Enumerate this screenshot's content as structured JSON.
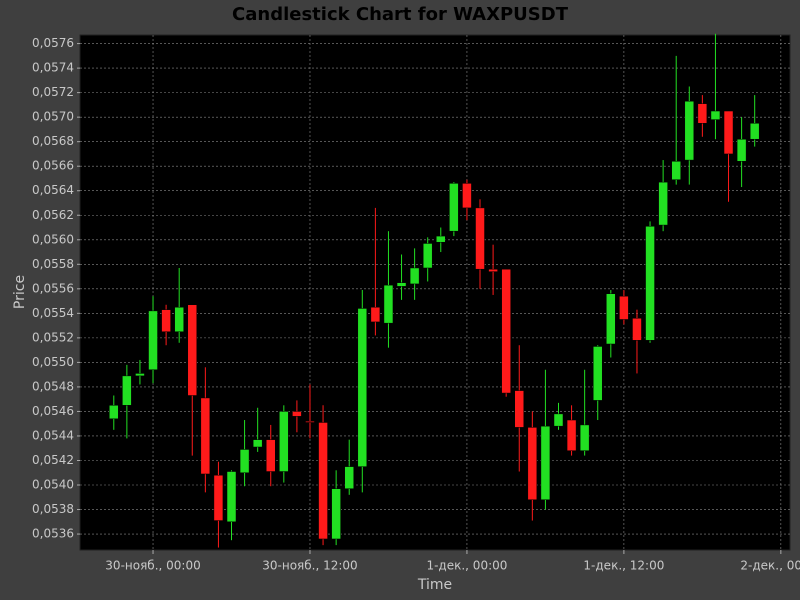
{
  "chart_data": {
    "type": "candlestick",
    "title": "Candlestick Chart for WAXPUSDT",
    "xlabel": "Time",
    "ylabel": "Price",
    "x": [
      "29-нояб., 21:00",
      "29-нояб., 22:00",
      "29-нояб., 23:00",
      "30-нояб., 00:00",
      "30-нояб., 01:00",
      "30-нояб., 02:00",
      "30-нояб., 03:00",
      "30-нояб., 04:00",
      "30-нояб., 05:00",
      "30-нояб., 06:00",
      "30-нояб., 07:00",
      "30-нояб., 08:00",
      "30-нояб., 09:00",
      "30-нояб., 10:00",
      "30-нояб., 11:00",
      "30-нояб., 12:00",
      "30-нояб., 13:00",
      "30-нояб., 14:00",
      "30-нояб., 15:00",
      "30-нояб., 16:00",
      "30-нояб., 17:00",
      "30-нояб., 18:00",
      "30-нояб., 19:00",
      "30-нояб., 20:00",
      "30-нояб., 21:00",
      "30-нояб., 22:00",
      "30-нояб., 23:00",
      "1-дек., 00:00",
      "1-дек., 01:00",
      "1-дек., 02:00",
      "1-дек., 03:00",
      "1-дек., 04:00",
      "1-дек., 05:00",
      "1-дек., 06:00",
      "1-дек., 07:00",
      "1-дек., 08:00",
      "1-дек., 09:00",
      "1-дек., 10:00",
      "1-дек., 11:00",
      "1-дек., 12:00",
      "1-дек., 13:00",
      "1-дек., 14:00",
      "1-дек., 15:00",
      "1-дек., 16:00",
      "1-дек., 17:00",
      "1-дек., 18:00",
      "1-дек., 19:00",
      "1-дек., 20:00",
      "1-дек., 21:00",
      "1-дек., 22:00"
    ],
    "open": [
      0.05454,
      0.05465,
      0.05489,
      0.05494,
      0.05543,
      0.05525,
      0.05547,
      0.05471,
      0.05408,
      0.0537,
      0.0541,
      0.05431,
      0.05437,
      0.05411,
      0.0546,
      0.05452,
      0.05451,
      0.05356,
      0.05397,
      0.05415,
      0.05545,
      0.05532,
      0.05562,
      0.05564,
      0.05577,
      0.05598,
      0.05607,
      0.05646,
      0.05626,
      0.05576,
      0.05576,
      0.05477,
      0.05447,
      0.05388,
      0.05448,
      0.05453,
      0.05428,
      0.05469,
      0.05515,
      0.05554,
      0.05536,
      0.05518,
      0.05612,
      0.05649,
      0.05665,
      0.05711,
      0.05698,
      0.05705,
      0.05664,
      0.05682
    ],
    "high": [
      0.05473,
      0.05498,
      0.05502,
      0.05554,
      0.05547,
      0.05577,
      0.05547,
      0.05496,
      0.05419,
      0.05412,
      0.05453,
      0.05463,
      0.05449,
      0.05465,
      0.05469,
      0.05482,
      0.05465,
      0.05412,
      0.05437,
      0.05559,
      0.05626,
      0.05607,
      0.05588,
      0.05593,
      0.05602,
      0.0561,
      0.05647,
      0.05649,
      0.05633,
      0.05596,
      0.05576,
      0.05514,
      0.0546,
      0.05494,
      0.05467,
      0.05465,
      0.05494,
      0.05514,
      0.05559,
      0.05559,
      0.05543,
      0.05615,
      0.05665,
      0.0575,
      0.05725,
      0.05718,
      0.05768,
      0.05705,
      0.057,
      0.05718
    ],
    "low": [
      0.05445,
      0.05438,
      0.05482,
      0.05483,
      0.05514,
      0.05516,
      0.05424,
      0.05394,
      0.05349,
      0.05355,
      0.05399,
      0.05427,
      0.05399,
      0.05402,
      0.05443,
      0.05438,
      0.05351,
      0.05351,
      0.05392,
      0.05394,
      0.05522,
      0.05512,
      0.05551,
      0.05551,
      0.05566,
      0.0559,
      0.05603,
      0.05616,
      0.0556,
      0.05555,
      0.05472,
      0.05411,
      0.05371,
      0.0538,
      0.05445,
      0.05424,
      0.05424,
      0.05453,
      0.05504,
      0.05531,
      0.05491,
      0.05516,
      0.05607,
      0.05645,
      0.05645,
      0.05684,
      0.05682,
      0.05631,
      0.05643,
      0.05676
    ],
    "close": [
      0.05465,
      0.05489,
      0.05491,
      0.05542,
      0.05525,
      0.05545,
      0.05473,
      0.05409,
      0.05371,
      0.05411,
      0.05429,
      0.05437,
      0.05411,
      0.0546,
      0.05456,
      0.05451,
      0.05356,
      0.05397,
      0.05415,
      0.05544,
      0.05533,
      0.05563,
      0.05565,
      0.05577,
      0.05597,
      0.05603,
      0.05646,
      0.05626,
      0.05576,
      0.05574,
      0.05475,
      0.05447,
      0.05388,
      0.05448,
      0.05458,
      0.05428,
      0.05449,
      0.05513,
      0.05556,
      0.05535,
      0.05518,
      0.05611,
      0.05647,
      0.05664,
      0.05713,
      0.05695,
      0.05705,
      0.0567,
      0.05682,
      0.05695
    ],
    "up_color": "#22e022",
    "down_color": "#ff1a1a",
    "xlim": [
      "29-нояб., 18:25",
      "2-дек., 00:42"
    ],
    "xticks": [
      "30-нояб., 00:00",
      "30-нояб., 12:00",
      "1-дек., 00:00",
      "1-дек., 12:00",
      "2-дек., 00:00"
    ],
    "ylim": [
      0.05347,
      0.05767
    ],
    "yticks": [
      {
        "value": 0.0536,
        "label": "0,0536"
      },
      {
        "value": 0.0538,
        "label": "0,0538"
      },
      {
        "value": 0.054,
        "label": "0,0540"
      },
      {
        "value": 0.0542,
        "label": "0,0542"
      },
      {
        "value": 0.0544,
        "label": "0,0544"
      },
      {
        "value": 0.0546,
        "label": "0,0546"
      },
      {
        "value": 0.0548,
        "label": "0,0548"
      },
      {
        "value": 0.055,
        "label": "0,0550"
      },
      {
        "value": 0.0552,
        "label": "0,0552"
      },
      {
        "value": 0.0554,
        "label": "0,0554"
      },
      {
        "value": 0.0556,
        "label": "0,0556"
      },
      {
        "value": 0.0558,
        "label": "0,0558"
      },
      {
        "value": 0.056,
        "label": "0,0560"
      },
      {
        "value": 0.0562,
        "label": "0,0562"
      },
      {
        "value": 0.0564,
        "label": "0,0564"
      },
      {
        "value": 0.0566,
        "label": "0,0566"
      },
      {
        "value": 0.0568,
        "label": "0,0568"
      },
      {
        "value": 0.057,
        "label": "0,0570"
      },
      {
        "value": 0.0572,
        "label": "0,0572"
      },
      {
        "value": 0.0574,
        "label": "0,0574"
      },
      {
        "value": 0.0576,
        "label": "0,0576"
      }
    ],
    "grid": true
  }
}
